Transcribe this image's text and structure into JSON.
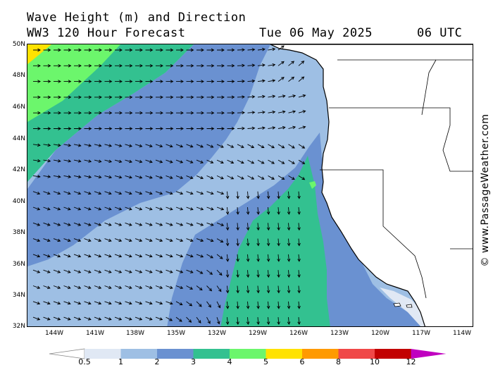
{
  "header": {
    "title": "Wave Height (m) and Direction",
    "model": "WW3 120 Hour Forecast",
    "date": "Tue 06 May 2025",
    "time": "06 UTC"
  },
  "credit": "© www.PassageWeather.com",
  "map": {
    "lat_labels": [
      "50N",
      "48N",
      "46N",
      "44N",
      "42N",
      "40N",
      "38N",
      "36N",
      "34N",
      "32N"
    ],
    "lon_labels": [
      "144W",
      "141W",
      "138W",
      "135W",
      "132W",
      "129W",
      "126W",
      "123W",
      "120W",
      "117W",
      "114W"
    ]
  },
  "legend": {
    "labels": [
      "0.5",
      "1",
      "2",
      "3",
      "4",
      "5",
      "6",
      "8",
      "10",
      "12"
    ],
    "colors": [
      "#e0e8f4",
      "#9ebfe4",
      "#6a91d1",
      "#33c190",
      "#6cf66c",
      "#ffe200",
      "#ff9a00",
      "#f04848",
      "#c20000",
      "#c000c0"
    ]
  }
}
